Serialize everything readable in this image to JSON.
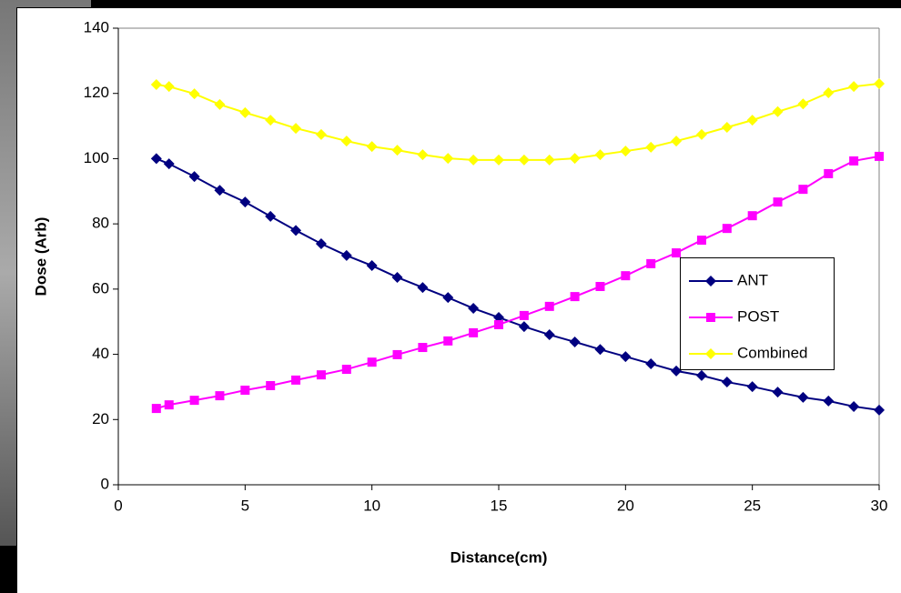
{
  "chart_data": {
    "type": "line",
    "x_label": "Distance(cm)",
    "y_label": "Dose (Arb)",
    "x": [
      1.5,
      2,
      3,
      4,
      5,
      6,
      7,
      8,
      9,
      10,
      11,
      12,
      13,
      14,
      15,
      16,
      17,
      18,
      19,
      20,
      21,
      22,
      23,
      24,
      25,
      26,
      27,
      28,
      29,
      30
    ],
    "series": [
      {
        "name": "ANT",
        "color": "#000080",
        "marker": "diamond",
        "values": [
          100,
          98.4,
          94.5,
          90.3,
          86.7,
          82.3,
          78,
          73.9,
          70.3,
          67.2,
          63.6,
          60.5,
          57.4,
          54.1,
          51.3,
          48.5,
          46,
          43.8,
          41.5,
          39.3,
          37.1,
          34.9,
          33.5,
          31.5,
          30.1,
          28.4,
          26.8,
          25.7,
          24,
          22.9
        ]
      },
      {
        "name": "POST",
        "color": "#ff00ff",
        "marker": "square",
        "values": [
          23.4,
          24.5,
          25.9,
          27.3,
          29,
          30.4,
          32.1,
          33.7,
          35.4,
          37.6,
          39.9,
          42.1,
          44.1,
          46.6,
          49.1,
          51.9,
          54.7,
          57.7,
          60.8,
          64.1,
          67.8,
          71.1,
          75,
          78.6,
          82.5,
          86.7,
          90.6,
          95.4,
          99.3,
          100.7
        ]
      },
      {
        "name": "Combined",
        "color": "#ffff00",
        "marker": "diamond",
        "values": [
          122.7,
          122.1,
          119.9,
          116.6,
          114.1,
          111.8,
          109.3,
          107.4,
          105.4,
          103.7,
          102.6,
          101.2,
          100.1,
          99.6,
          99.6,
          99.6,
          99.6,
          100.1,
          101.2,
          102.3,
          103.5,
          105.4,
          107.4,
          109.6,
          111.8,
          114.4,
          116.8,
          120.2,
          122.1,
          123
        ]
      }
    ],
    "xlim": [
      0,
      30
    ],
    "xticks": [
      0,
      5,
      10,
      15,
      20,
      25,
      30
    ],
    "ylim": [
      0,
      140
    ],
    "yticks": [
      0,
      20,
      40,
      60,
      80,
      100,
      120,
      140
    ],
    "grid": false,
    "legend": "right"
  }
}
